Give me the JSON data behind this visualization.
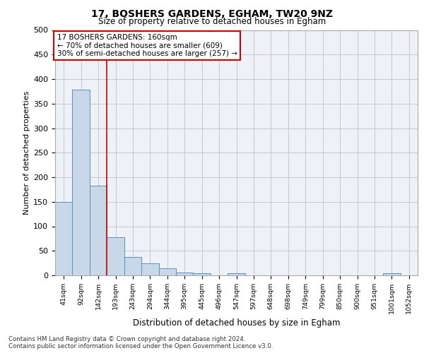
{
  "title1": "17, BOSHERS GARDENS, EGHAM, TW20 9NZ",
  "title2": "Size of property relative to detached houses in Egham",
  "xlabel": "Distribution of detached houses by size in Egham",
  "ylabel": "Number of detached properties",
  "bar_labels": [
    "41sqm",
    "92sqm",
    "142sqm",
    "193sqm",
    "243sqm",
    "294sqm",
    "344sqm",
    "395sqm",
    "445sqm",
    "496sqm",
    "547sqm",
    "597sqm",
    "648sqm",
    "698sqm",
    "749sqm",
    "799sqm",
    "850sqm",
    "900sqm",
    "951sqm",
    "1001sqm",
    "1052sqm"
  ],
  "bar_values": [
    150,
    378,
    183,
    77,
    37,
    25,
    15,
    6,
    5,
    0,
    5,
    0,
    0,
    0,
    0,
    0,
    0,
    0,
    0,
    5,
    0
  ],
  "bar_color": "#c8d8e8",
  "bar_edge_color": "#5a8fc0",
  "vline_x": 2.5,
  "vline_color": "#cc0000",
  "annotation_title": "17 BOSHERS GARDENS: 160sqm",
  "annotation_line1": "← 70% of detached houses are smaller (609)",
  "annotation_line2": "30% of semi-detached houses are larger (257) →",
  "ylim": [
    0,
    500
  ],
  "yticks": [
    0,
    50,
    100,
    150,
    200,
    250,
    300,
    350,
    400,
    450,
    500
  ],
  "footer_line1": "Contains HM Land Registry data © Crown copyright and database right 2024.",
  "footer_line2": "Contains public sector information licensed under the Open Government Licence v3.0.",
  "bg_color": "#eef2f6",
  "grid_color": "#c0c8d4"
}
